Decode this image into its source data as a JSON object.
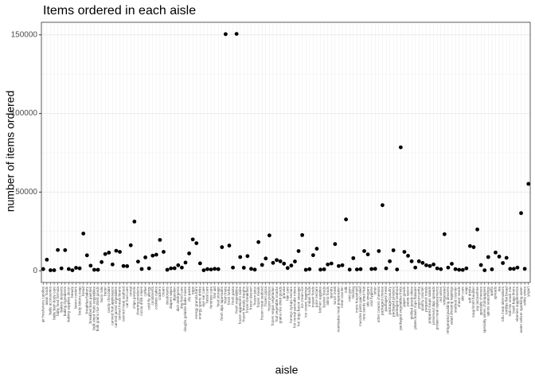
{
  "chart_data": {
    "type": "scatter",
    "title": "Items ordered in each aisle",
    "x_label": "aisle",
    "y_label": "number of items ordered",
    "categories": [
      "air fresheners candles",
      "asian foods",
      "baby accessories",
      "baby bath body care",
      "baby food formula",
      "bakery desserts",
      "baking ingredients",
      "baking supplies decor",
      "beauty",
      "beers coolers",
      "body lotions soap",
      "bread",
      "breakfast bakery",
      "breakfast bars pastries",
      "bulk dried fruits vegetables",
      "bulk grains rice dried goods",
      "buns rolls",
      "butter",
      "candy chocolate",
      "canned fruit applesauce",
      "canned jarred vegetables",
      "canned meals beans",
      "canned meat seafood",
      "cat food care",
      "cereal",
      "chips pretzels",
      "cleaning products",
      "cocoa drink mixes",
      "coffee",
      "cold flu allergy",
      "condiments",
      "cookies cakes",
      "crackers",
      "cream",
      "deodorants",
      "diapers wipes",
      "digestion",
      "dish detergents",
      "dog food care",
      "doughs gelatins bake mixes",
      "dry pasta",
      "eggs",
      "energy granola bars",
      "energy sports drinks",
      "eye ear care",
      "facial care",
      "feminine care",
      "first aid",
      "food storage",
      "fresh dips tapenades",
      "fresh fruits",
      "fresh herbs",
      "fresh pasta",
      "fresh vegetables",
      "frozen appetizers sides",
      "frozen breads doughs",
      "frozen breakfast",
      "frozen dessert",
      "frozen juice",
      "frozen meals",
      "frozen meat seafood",
      "frozen pizza",
      "frozen produce",
      "frozen vegan vegetarian",
      "fruit vegetable snacks",
      "grains rice dried goods",
      "granola",
      "hair care",
      "honeys syrups nectars",
      "hot cereal pancake mixes",
      "hot dogs bacon sausage",
      "ice cream ice",
      "ice cream toppings",
      "indian foods",
      "instant foods",
      "juice nectars",
      "kitchen supplies",
      "kosher foods",
      "latino foods",
      "laundry",
      "lunch meat",
      "marinades meat preparation",
      "meat counter",
      "milk",
      "mint gum",
      "missing",
      "more household",
      "muscles joints pain relief",
      "nuts seeds dried fruit",
      "oils vinegars",
      "oral hygiene",
      "other",
      "other creams cheeses",
      "packaged cheese",
      "packaged meat",
      "packaged poultry",
      "packaged produce",
      "packaged seafood",
      "packaged vegetables fruits",
      "paper goods",
      "pasta sauce",
      "pickled goods olives",
      "plates bowls cups flatware",
      "popcorn jerky",
      "poultry counter",
      "prepared meals",
      "prepared soups salads",
      "preserved dips spreads",
      "protein meal replacements",
      "red wines",
      "refrigerated",
      "refrigerated pudding desserts",
      "salad dressing toppings",
      "seafood counter",
      "shave needs",
      "skin care",
      "soap",
      "soft drinks",
      "soup broth bouillon",
      "soy lactosefree",
      "specialty cheeses",
      "specialty wines champagnes",
      "spices seasonings",
      "spirits",
      "spreads",
      "tea",
      "tofu meat alternatives",
      "tortillas flat bread",
      "trail mix snack mix",
      "trash bags liners",
      "vitamins supplements",
      "water seltzer sparkling water",
      "white wines",
      "yogurt"
    ],
    "values": [
      1067,
      7007,
      306,
      328,
      13198,
      1501,
      13088,
      1094,
      287,
      1839,
      1516,
      23635,
      9800,
      3200,
      600,
      600,
      5500,
      10600,
      11500,
      4000,
      12700,
      12000,
      3000,
      2900,
      16200,
      31269,
      5800,
      1100,
      8500,
      1500,
      9600,
      10200,
      19592,
      12000,
      600,
      1500,
      1600,
      3500,
      2000,
      5200,
      11000,
      19900,
      17500,
      4700,
      300,
      1000,
      800,
      1200,
      1000,
      15000,
      150473,
      16000,
      2000,
      150609,
      8700,
      1900,
      9300,
      1200,
      700,
      18221,
      3700,
      7800,
      22453,
      5000,
      6800,
      6000,
      4500,
      1700,
      3300,
      5900,
      12500,
      22676,
      600,
      1000,
      9900,
      14000,
      700,
      900,
      4000,
      4600,
      16957,
      3000,
      3500,
      32644,
      700,
      8000,
      800,
      1000,
      12500,
      10400,
      1100,
      1200,
      12500,
      41699,
      1500,
      6000,
      13000,
      800,
      78493,
      12000,
      9500,
      6000,
      2000,
      6000,
      5000,
      3500,
      3000,
      4000,
      1500,
      1000,
      23228,
      2000,
      4400,
      1000,
      600,
      500,
      1500,
      15700,
      15000,
      26240,
      3600,
      300,
      8700,
      900,
      11600,
      9000,
      4900,
      8200,
      1200,
      1200,
      2000,
      36617,
      1200,
      55240
    ],
    "color": "#000000",
    "ylim": [
      -7500,
      158000
    ],
    "yticks": [
      0,
      50000,
      100000,
      150000
    ],
    "grid": true
  }
}
